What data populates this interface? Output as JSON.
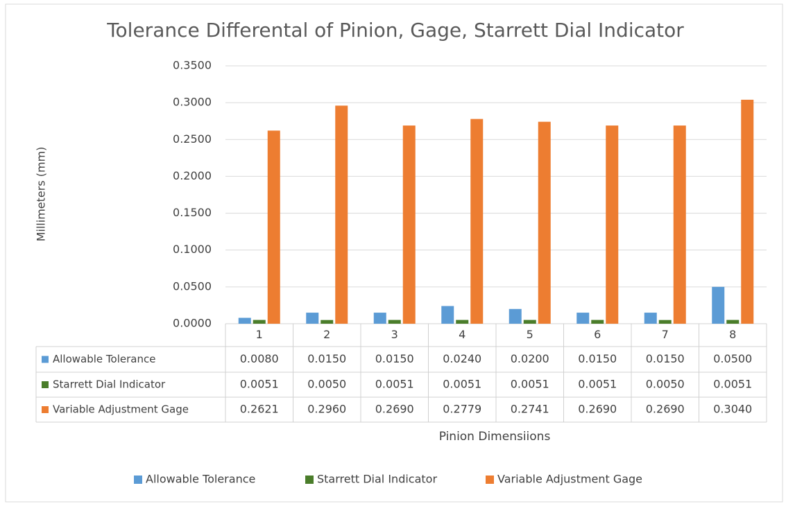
{
  "chart_data": {
    "type": "bar",
    "title": "Tolerance Differental of Pinion, Gage, Starrett Dial Indicator",
    "y_label": "Millimeters (mm)",
    "x_label": "Pinion Dimensiions",
    "categories": [
      "1",
      "2",
      "3",
      "4",
      "5",
      "6",
      "7",
      "8"
    ],
    "series": [
      {
        "name": "Allowable Tolerance",
        "color": "#5b9bd5",
        "values": [
          0.008,
          0.015,
          0.015,
          0.024,
          0.02,
          0.015,
          0.015,
          0.05
        ],
        "value_labels": [
          "0.0080",
          "0.0150",
          "0.0150",
          "0.0240",
          "0.0200",
          "0.0150",
          "0.0150",
          "0.0500"
        ]
      },
      {
        "name": "Starrett Dial Indicator",
        "color": "#4a7d2a",
        "values": [
          0.0051,
          0.005,
          0.0051,
          0.0051,
          0.0051,
          0.0051,
          0.005,
          0.0051
        ],
        "value_labels": [
          "0.0051",
          "0.0050",
          "0.0051",
          "0.0051",
          "0.0051",
          "0.0051",
          "0.0050",
          "0.0051"
        ]
      },
      {
        "name": "Variable Adjustment Gage",
        "color": "#ed7d31",
        "values": [
          0.2621,
          0.296,
          0.269,
          0.2779,
          0.2741,
          0.269,
          0.269,
          0.304
        ],
        "value_labels": [
          "0.2621",
          "0.2960",
          "0.2690",
          "0.2779",
          "0.2741",
          "0.2690",
          "0.2690",
          "0.3040"
        ]
      }
    ],
    "ylim": [
      0,
      0.35
    ],
    "yticks": [
      {
        "value": 0,
        "label": "0.0000"
      },
      {
        "value": 0.05,
        "label": "0.0500"
      },
      {
        "value": 0.1,
        "label": "0.1000"
      },
      {
        "value": 0.15,
        "label": "0.1500"
      },
      {
        "value": 0.2,
        "label": "0.2000"
      },
      {
        "value": 0.25,
        "label": "0.2500"
      },
      {
        "value": 0.3,
        "label": "0.3000"
      },
      {
        "value": 0.35,
        "label": "0.3500"
      }
    ],
    "grid": true,
    "legend": "bottom"
  }
}
